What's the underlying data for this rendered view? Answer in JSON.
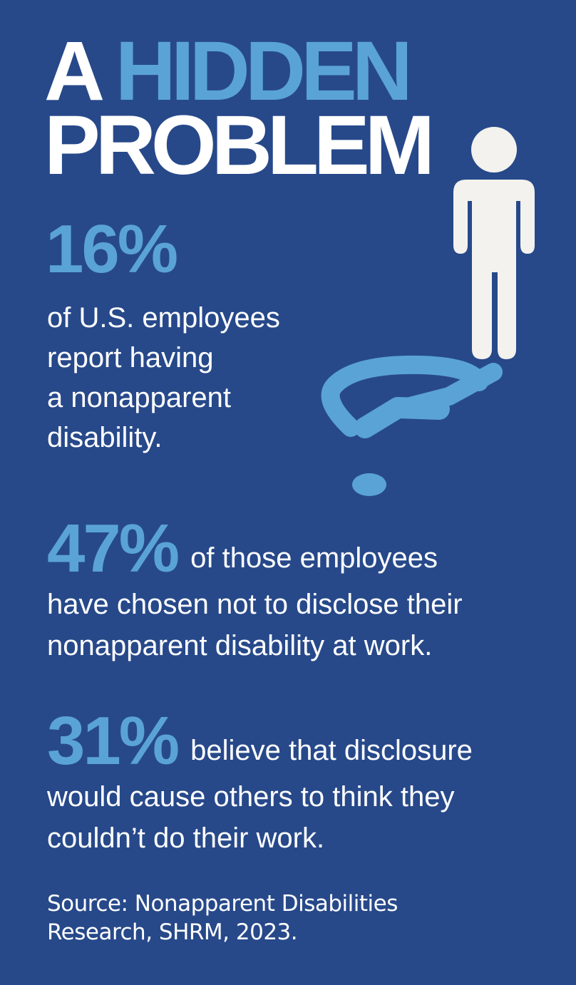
{
  "headline": {
    "word1": "A",
    "word2": "HIDDEN",
    "word3": "PROBLEM"
  },
  "stats": [
    {
      "value": "16%",
      "lines": [
        "of U.S. employees",
        "report having",
        "a nonapparent",
        "disability."
      ]
    },
    {
      "value": "47%",
      "inline_text": "of those employees",
      "rest_lines": [
        "have chosen not to disclose their",
        "nonapparent disability at work."
      ]
    },
    {
      "value": "31%",
      "inline_text": "believe that disclosure",
      "rest_lines": [
        "would cause others to think they",
        "couldn’t do their work."
      ]
    }
  ],
  "source": {
    "line1": "Source: Nonapparent Disabilities",
    "line2": "Research, SHRM, 2023."
  },
  "colors": {
    "background": "#27498a",
    "accent": "#5aa3d6",
    "text": "#ffffff",
    "figure": "#f4f2ee"
  },
  "icons": [
    "person-icon",
    "question-mark-wheelchair-icon"
  ]
}
